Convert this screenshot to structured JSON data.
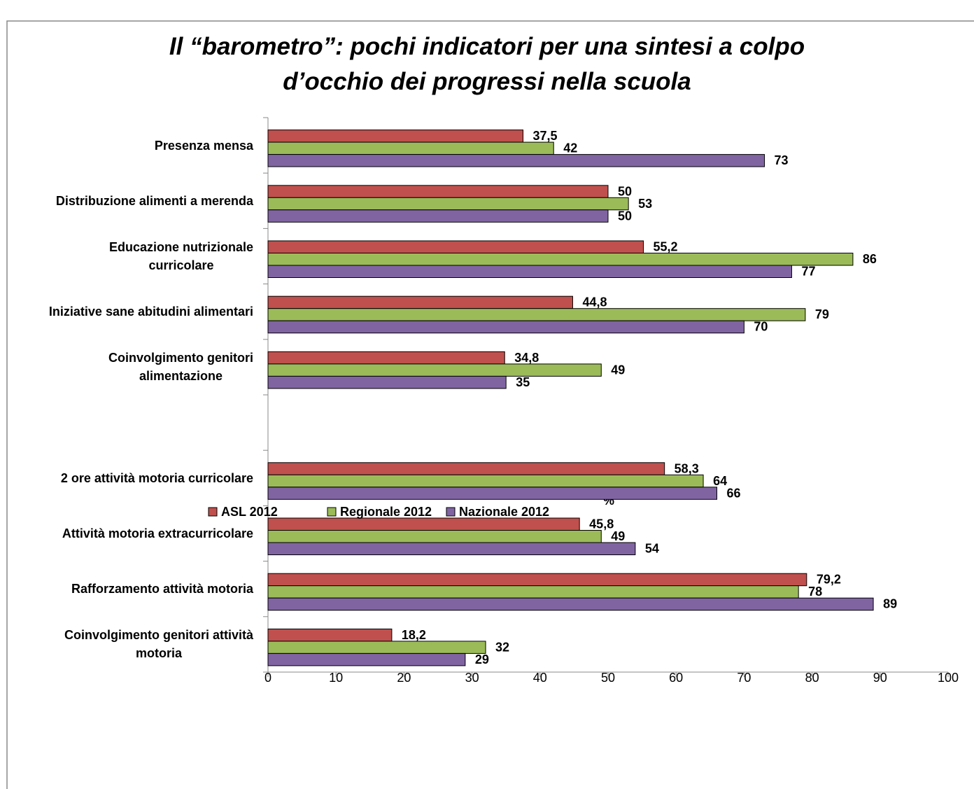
{
  "chart_data": {
    "type": "bar",
    "orientation": "horizontal",
    "title": "Il “barometro”: pochi indicatori per una sintesi a colpo\nd’occhio dei progressi nella scuola",
    "x_label": "%",
    "categories": [
      "Presenza mensa",
      "Distribuzione alimenti a merenda",
      "Educazione nutrizionale\ncurricolare",
      "Iniziative sane abitudini alimentari",
      "Coinvolgimento genitori\nalimentazione",
      null,
      "2 ore attività motoria curricolare",
      "Attività motoria extracurricolare",
      "Rafforzamento attività motoria",
      "Coinvolgimento genitori attività\nmotoria"
    ],
    "series": [
      {
        "name": "ASL 2012",
        "color": "#c0504d",
        "values": [
          37.5,
          50,
          55.2,
          44.8,
          34.8,
          null,
          58.3,
          45.8,
          79.2,
          18.2
        ],
        "value_labels": [
          "37,5",
          "50",
          "55,2",
          "44,8",
          "34,8",
          null,
          "58,3",
          "45,8",
          "79,2",
          "18,2"
        ]
      },
      {
        "name": "Regionale 2012",
        "color": "#9bbb59",
        "values": [
          42,
          53,
          86,
          79,
          49,
          null,
          64,
          49,
          78,
          32
        ],
        "value_labels": [
          "42",
          "53",
          "86",
          "79",
          "49",
          null,
          "64",
          "49",
          "78",
          "32"
        ]
      },
      {
        "name": "Nazionale 2012",
        "color": "#8064a2",
        "values": [
          73,
          50,
          77,
          70,
          35,
          null,
          66,
          54,
          89,
          29
        ],
        "value_labels": [
          "73",
          "50",
          "77",
          "70",
          "35",
          null,
          "66",
          "54",
          "89",
          "29"
        ]
      }
    ],
    "xlim": [
      0,
      100
    ],
    "xticks": [
      0,
      10,
      20,
      30,
      40,
      50,
      60,
      70,
      80,
      90,
      100
    ],
    "legend": "bottom"
  }
}
